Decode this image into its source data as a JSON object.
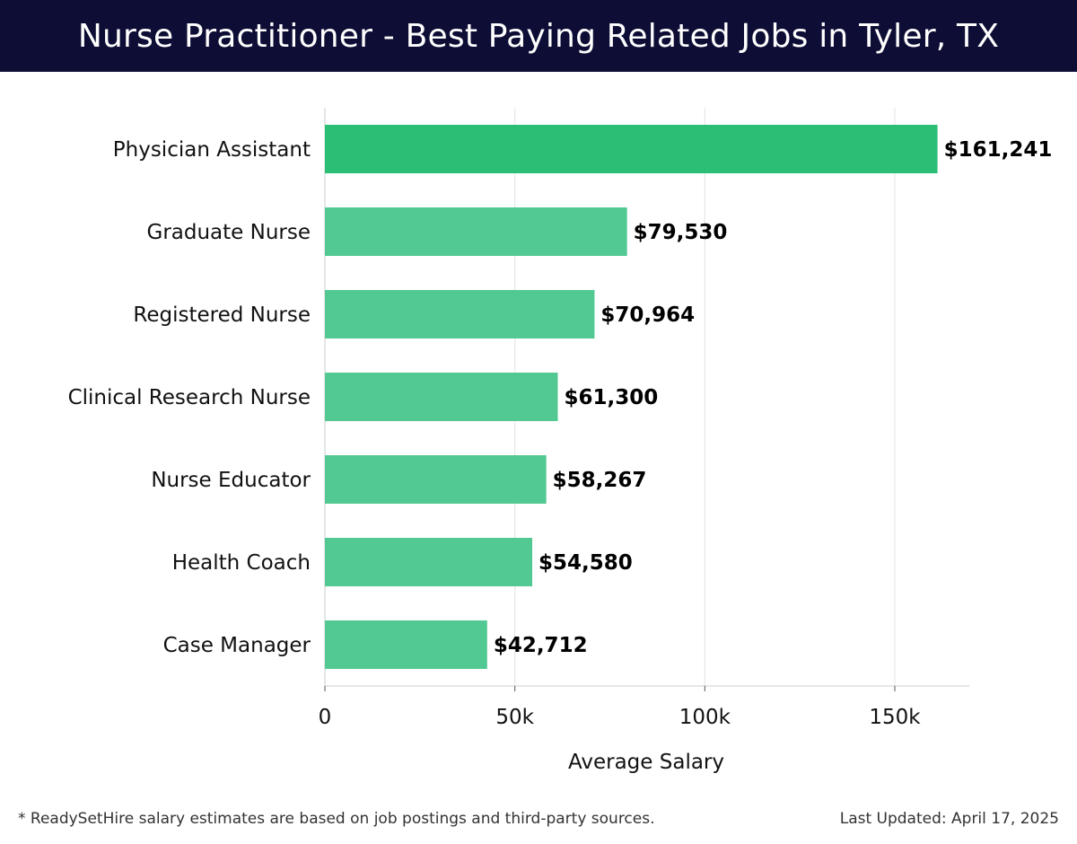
{
  "header": {
    "title": "Nurse Practitioner - Best Paying Related Jobs in Tyler, TX"
  },
  "chart_data": {
    "type": "bar",
    "orientation": "horizontal",
    "title": "Nurse Practitioner - Best Paying Related Jobs in Tyler, TX",
    "xlabel": "Average Salary",
    "ylabel": "",
    "xlim": [
      0,
      170000
    ],
    "x_ticks": [
      0,
      50000,
      100000,
      150000
    ],
    "x_tick_labels": [
      "0",
      "50k",
      "100k",
      "150k"
    ],
    "grid": "vertical",
    "categories": [
      "Physician Assistant",
      "Graduate Nurse",
      "Registered Nurse",
      "Clinical Research Nurse",
      "Nurse Educator",
      "Health Coach",
      "Case Manager"
    ],
    "values": [
      161241,
      79530,
      70964,
      61300,
      58267,
      54580,
      42712
    ],
    "value_labels": [
      "$161,241",
      "$79,530",
      "$70,964",
      "$61,300",
      "$58,267",
      "$54,580",
      "$42,712"
    ],
    "colors": {
      "highlight": "#2bbf76",
      "bar": "#52c993",
      "grid": "#e3e3e3",
      "axis": "#cccccc"
    }
  },
  "footer": {
    "note": "* ReadySetHire salary estimates are based on job postings and third-party sources.",
    "updated": "Last Updated: April 17, 2025"
  }
}
